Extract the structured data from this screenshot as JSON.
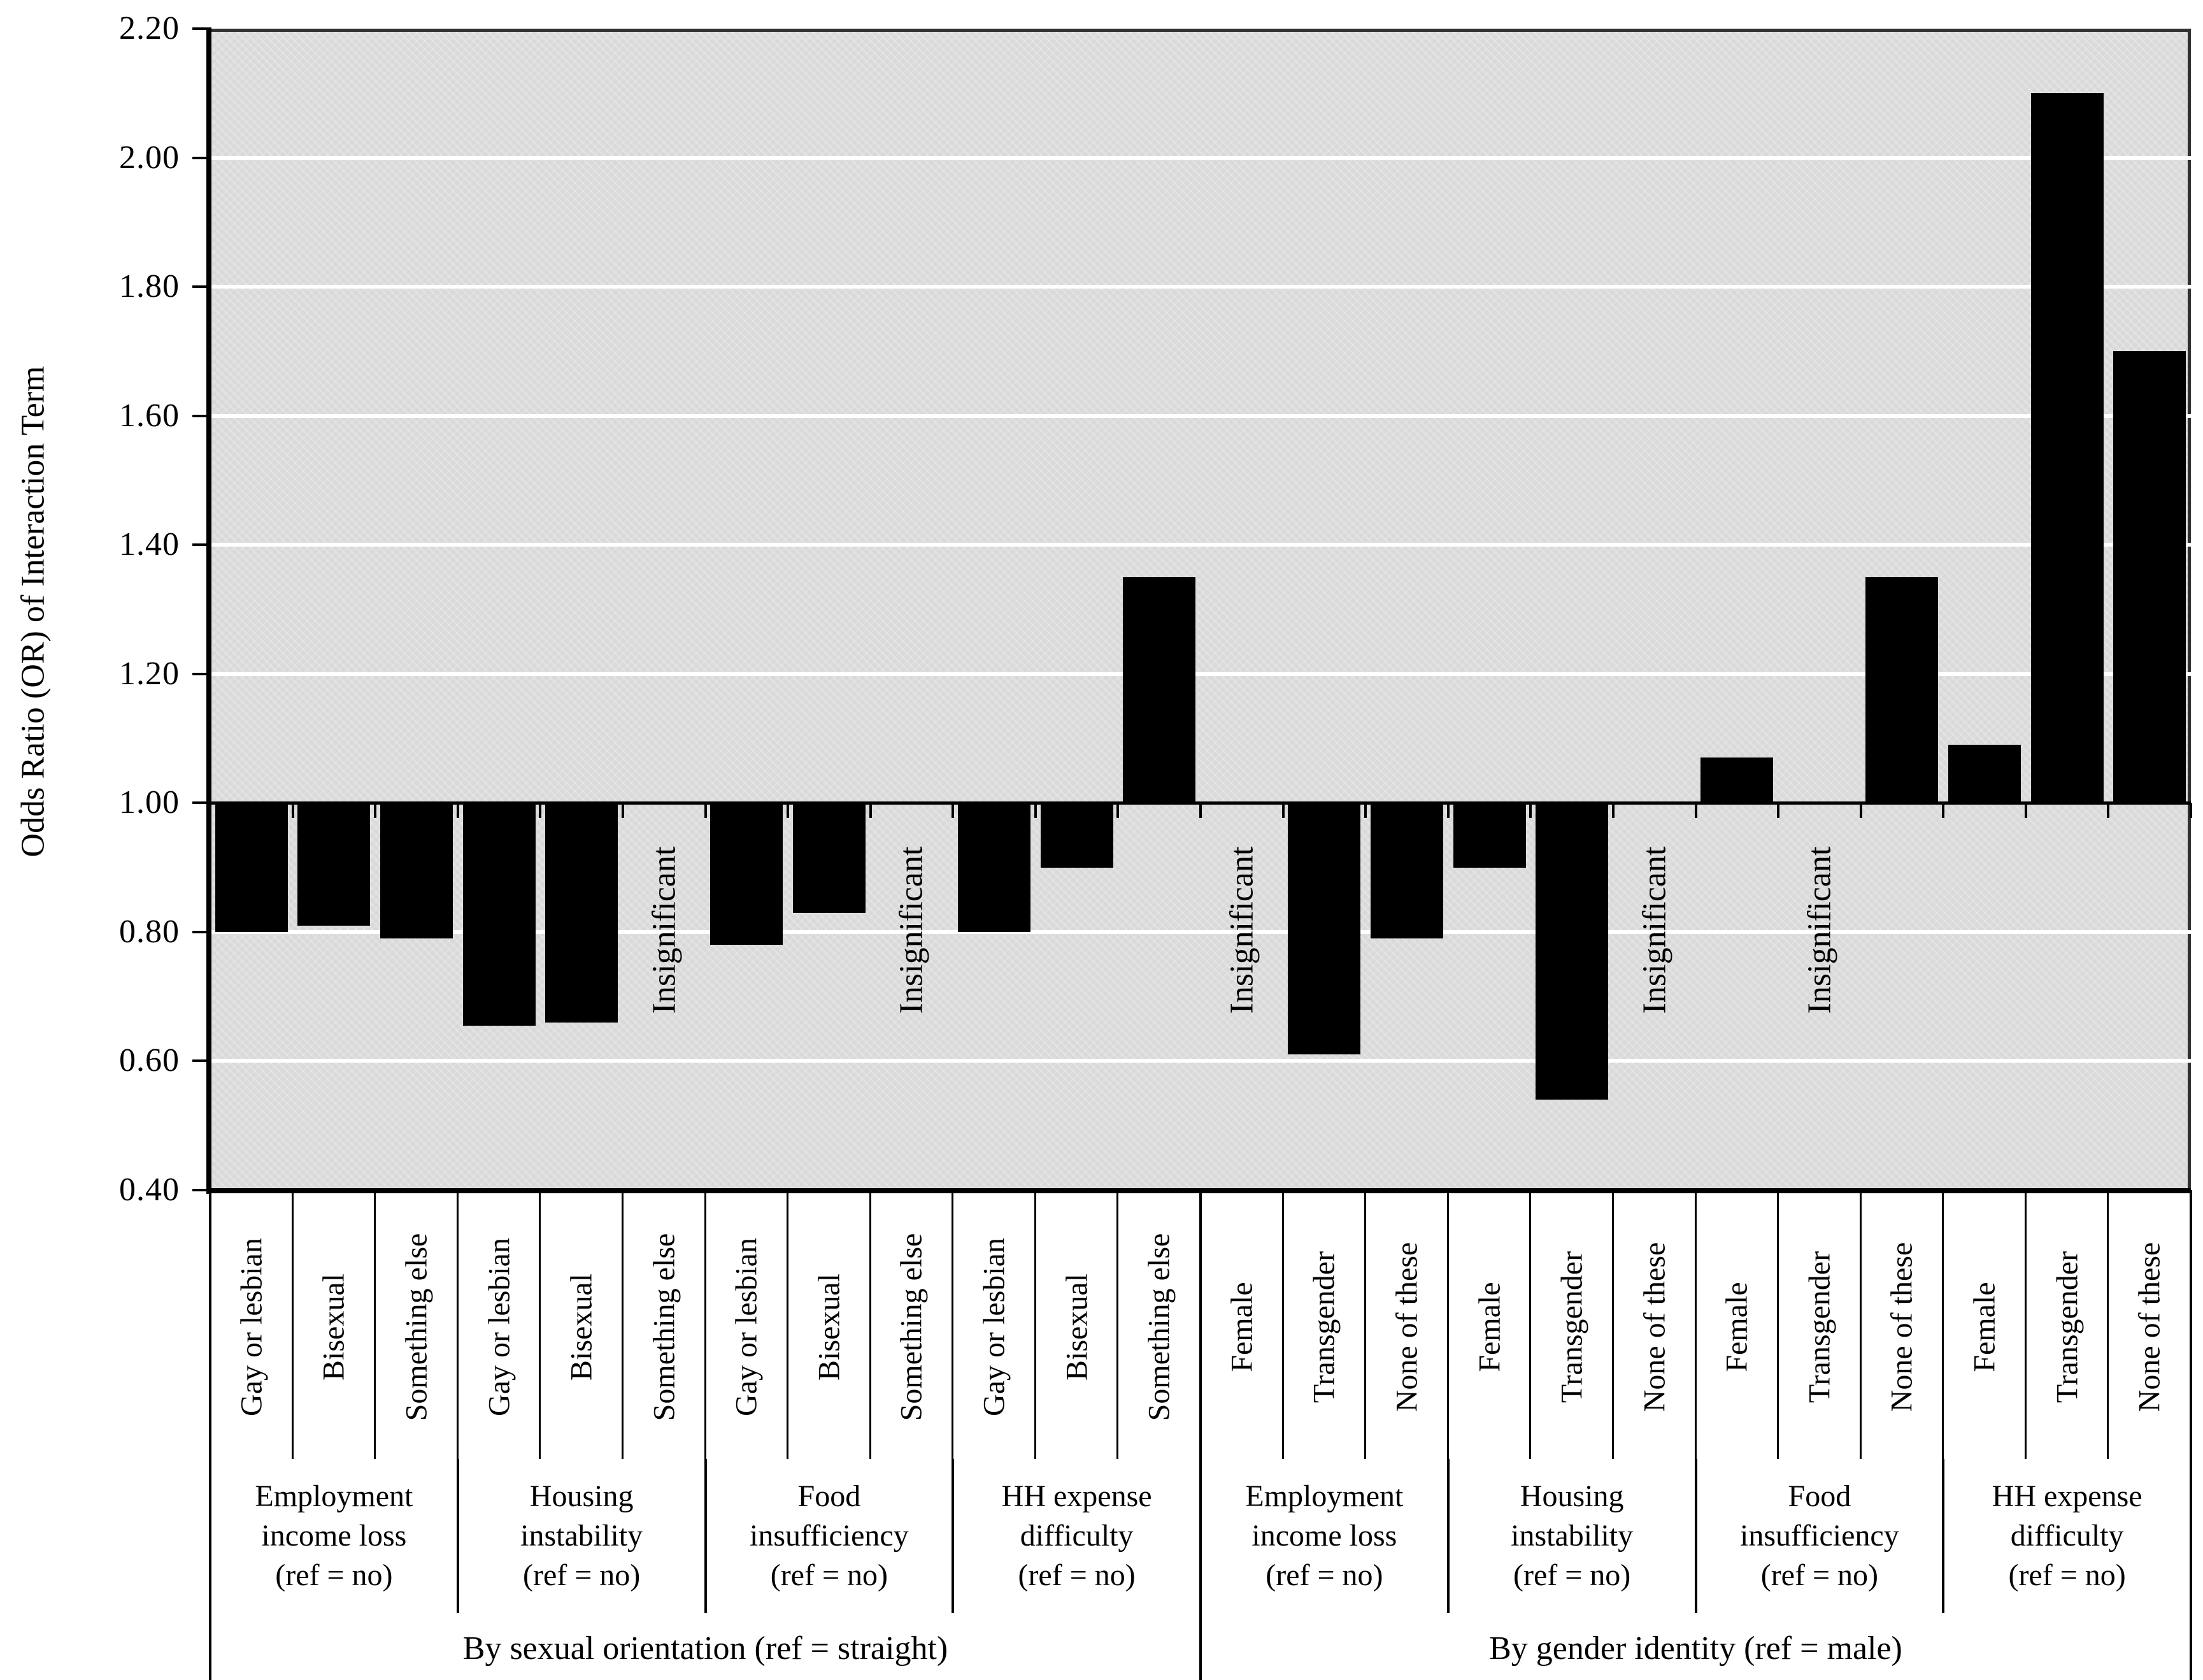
{
  "y_axis": {
    "title": "Odds Ratio (OR) of Interaction Term",
    "tick_labels": [
      "2.20",
      "2.00",
      "1.80",
      "1.60",
      "1.40",
      "1.20",
      "1.00",
      "0.80",
      "0.60",
      "0.40"
    ]
  },
  "insignificant_label": "Insignificant",
  "colors": {
    "bar": "#000000",
    "plot_background": "#d9d9d9",
    "gridline": "#ffffff",
    "axis": "#000000"
  },
  "chart_data": {
    "type": "bar",
    "title": "",
    "xlabel": "",
    "ylabel": "Odds Ratio (OR) of Interaction Term",
    "ylim": [
      0.4,
      2.2
    ],
    "y_tick_step": 0.2,
    "baseline": 1.0,
    "grid": "horizontal-white-on-gray",
    "legend": "none",
    "sections": [
      {
        "label": "By sexual orientation (ref = straight)",
        "groups": [
          {
            "label_lines": [
              "Employment",
              "income loss",
              "(ref = no)"
            ],
            "bars": [
              {
                "category": "Gay or lesbian",
                "value": 0.8
              },
              {
                "category": "Bisexual",
                "value": 0.81
              },
              {
                "category": "Something else",
                "value": 0.79
              }
            ]
          },
          {
            "label_lines": [
              "Housing",
              "instability",
              "(ref = no)"
            ],
            "bars": [
              {
                "category": "Gay or lesbian",
                "value": 0.655
              },
              {
                "category": "Bisexual",
                "value": 0.66
              },
              {
                "category": "Something else",
                "value": null,
                "note": "Insignificant"
              }
            ]
          },
          {
            "label_lines": [
              "Food",
              "insufficiency",
              "(ref = no)"
            ],
            "bars": [
              {
                "category": "Gay or lesbian",
                "value": 0.78
              },
              {
                "category": "Bisexual",
                "value": 0.83
              },
              {
                "category": "Something else",
                "value": null,
                "note": "Insignificant"
              }
            ]
          },
          {
            "label_lines": [
              "HH expense",
              "difficulty",
              "(ref = no)"
            ],
            "bars": [
              {
                "category": "Gay or lesbian",
                "value": 0.8
              },
              {
                "category": "Bisexual",
                "value": 0.9
              },
              {
                "category": "Something else",
                "value": 1.35
              }
            ]
          }
        ]
      },
      {
        "label": "By gender identity (ref = male)",
        "groups": [
          {
            "label_lines": [
              "Employment",
              "income loss",
              "(ref = no)"
            ],
            "bars": [
              {
                "category": "Female",
                "value": null,
                "note": "Insignificant"
              },
              {
                "category": "Transgender",
                "value": 0.61
              },
              {
                "category": "None of these",
                "value": 0.79
              }
            ]
          },
          {
            "label_lines": [
              "Housing",
              "instability",
              "(ref = no)"
            ],
            "bars": [
              {
                "category": "Female",
                "value": 0.9
              },
              {
                "category": "Transgender",
                "value": 0.54
              },
              {
                "category": "None of these",
                "value": null,
                "note": "Insignificant"
              }
            ]
          },
          {
            "label_lines": [
              "Food",
              "insufficiency",
              "(ref = no)"
            ],
            "bars": [
              {
                "category": "Female",
                "value": 1.07
              },
              {
                "category": "Transgender",
                "value": null,
                "note": "Insignificant"
              },
              {
                "category": "None of these",
                "value": 1.35
              }
            ]
          },
          {
            "label_lines": [
              "HH expense",
              "difficulty",
              "(ref = no)"
            ],
            "bars": [
              {
                "category": "Female",
                "value": 1.09
              },
              {
                "category": "Transgender",
                "value": 2.1
              },
              {
                "category": "None of these",
                "value": 1.7
              }
            ]
          }
        ]
      }
    ]
  }
}
